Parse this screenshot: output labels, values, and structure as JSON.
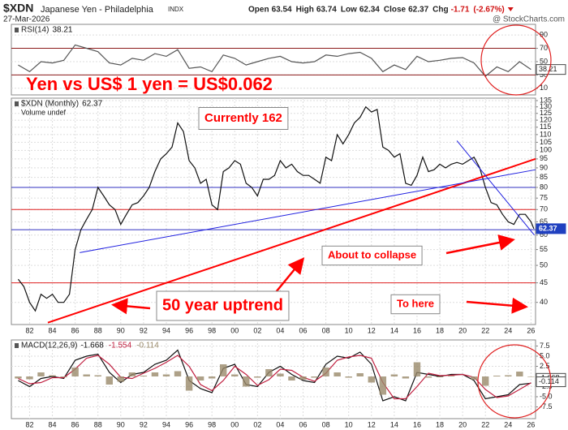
{
  "header": {
    "symbol": "$XDN",
    "name": "Japanese Yen - Philadelphia",
    "exchange": "INDX",
    "date": "27-Mar-2026",
    "quote_labels": {
      "open": "Open",
      "high": "High",
      "low": "Low",
      "close": "Close",
      "chg": "Chg"
    },
    "quote": {
      "open": 63.54,
      "high": 63.74,
      "low": 62.34,
      "close": 62.37,
      "chg": -1.71,
      "chg_pct": {
        "value": -2.67,
        "label": "(-2.67%)"
      }
    },
    "credit": "@ StockCharts.com"
  },
  "annotations": [
    "Yen vs US$  1 yen = US$0.062",
    "Currently 162",
    "50 year uptrend",
    "About to collapse",
    "To here"
  ],
  "chart_data": [
    {
      "type": "line",
      "label": "RSI(14)",
      "xlim": [
        1980.4,
        2026.4
      ],
      "ylim": [
        0,
        106
      ],
      "yticks": [
        10,
        30,
        50,
        70,
        90
      ],
      "grid": true,
      "hlines": [
        {
          "value": 70,
          "color": "#8b1a1a"
        },
        {
          "value": 30,
          "color": "#8b1a1a"
        }
      ],
      "series": [
        {
          "color": "#555555",
          "tag_color": "#ffffff",
          "x": [
            1981,
            1982,
            1983,
            1984,
            1985,
            1986,
            1987,
            1988,
            1989,
            1990,
            1991,
            1992,
            1993,
            1994,
            1995,
            1996,
            1997,
            1998,
            1999,
            2000,
            2001,
            2002,
            2003,
            2004,
            2005,
            2006,
            2007,
            2008,
            2009,
            2010,
            2011,
            2012,
            2013,
            2014,
            2015,
            2016,
            2017,
            2018,
            2019,
            2020,
            2021,
            2022,
            2023,
            2024,
            2025,
            2026
          ],
          "values": [
            45,
            35,
            50,
            48,
            52,
            75,
            70,
            65,
            48,
            45,
            55,
            52,
            62,
            58,
            68,
            40,
            42,
            35,
            60,
            55,
            45,
            50,
            55,
            58,
            50,
            48,
            50,
            60,
            58,
            62,
            64,
            55,
            35,
            45,
            38,
            58,
            50,
            52,
            55,
            56,
            48,
            28,
            42,
            35,
            50,
            38.21
          ]
        }
      ]
    },
    {
      "type": "line",
      "label": "$XDN (Monthly)",
      "note": "Volume undef",
      "log": true,
      "xlim": [
        1980.4,
        2026.4
      ],
      "ylim": [
        35,
        137
      ],
      "yticks": [
        40,
        45,
        50,
        55,
        60,
        65,
        70,
        75,
        80,
        85,
        90,
        95,
        100,
        105,
        110,
        115,
        120,
        125,
        130,
        135
      ],
      "xticks": [
        {
          "value": 1982,
          "label": "82"
        },
        {
          "value": 1984,
          "label": "84"
        },
        {
          "value": 1986,
          "label": "86"
        },
        {
          "value": 1988,
          "label": "88"
        },
        {
          "value": 1990,
          "label": "90"
        },
        {
          "value": 1992,
          "label": "92"
        },
        {
          "value": 1994,
          "label": "94"
        },
        {
          "value": 1996,
          "label": "96"
        },
        {
          "value": 1998,
          "label": "98"
        },
        {
          "value": 2000,
          "label": "00"
        },
        {
          "value": 2002,
          "label": "02"
        },
        {
          "value": 2004,
          "label": "04"
        },
        {
          "value": 2006,
          "label": "06"
        },
        {
          "value": 2008,
          "label": "08"
        },
        {
          "value": 2010,
          "label": "10"
        },
        {
          "value": 2012,
          "label": "12"
        },
        {
          "value": 2014,
          "label": "14"
        },
        {
          "value": 2016,
          "label": "16"
        },
        {
          "value": 2018,
          "label": "18"
        },
        {
          "value": 2020,
          "label": "20"
        },
        {
          "value": 2022,
          "label": "22"
        },
        {
          "value": 2024,
          "label": "24"
        },
        {
          "value": 2026,
          "label": "26"
        }
      ],
      "grid": true,
      "hlines": [
        {
          "value": 80,
          "color": "#3030c0"
        },
        {
          "value": 70,
          "color": "#e02020"
        },
        {
          "value": 62,
          "color": "#3030c0"
        },
        {
          "value": 45,
          "color": "#e02020"
        }
      ],
      "trendlines": [
        {
          "color": "#ff0000",
          "x": [
            1983.6,
            2026.4
          ],
          "values": [
            35.4,
            95
          ]
        },
        {
          "color": "#2020e0",
          "x": [
            1986.4,
            2026.4
          ],
          "values": [
            54,
            89
          ]
        },
        {
          "color": "#2020e0",
          "x": [
            2019.5,
            2026.3
          ],
          "values": [
            106,
            60
          ]
        }
      ],
      "series": [
        {
          "color": "#111111",
          "tag_color": "#2040c0",
          "x": [
            1981,
            1981.5,
            1982,
            1982.5,
            1983,
            1983.5,
            1984,
            1984.5,
            1985,
            1985.5,
            1986,
            1986.5,
            1987,
            1987.5,
            1988,
            1988.5,
            1989,
            1989.5,
            1990,
            1990.5,
            1991,
            1991.5,
            1992,
            1992.5,
            1993,
            1993.5,
            1994,
            1994.5,
            1995,
            1995.5,
            1996,
            1996.5,
            1997,
            1997.5,
            1998,
            1998.5,
            1999,
            1999.5,
            2000,
            2000.5,
            2001,
            2001.5,
            2002,
            2002.5,
            2003,
            2003.5,
            2004,
            2004.5,
            2005,
            2005.5,
            2006,
            2006.5,
            2007,
            2007.5,
            2008,
            2008.5,
            2009,
            2009.5,
            2010,
            2010.5,
            2011,
            2011.5,
            2012,
            2012.5,
            2013,
            2013.5,
            2014,
            2014.5,
            2015,
            2015.5,
            2016,
            2016.5,
            2017,
            2017.5,
            2018,
            2018.5,
            2019,
            2019.5,
            2020,
            2020.5,
            2021,
            2021.5,
            2022,
            2022.5,
            2023,
            2023.5,
            2024,
            2024.5,
            2025,
            2025.5,
            2026,
            2026.25
          ],
          "values": [
            46,
            44,
            40,
            38,
            42,
            41,
            42,
            40,
            40,
            42,
            55,
            62,
            66,
            70,
            80,
            76,
            72,
            70,
            64,
            68,
            72,
            73,
            76,
            80,
            88,
            95,
            98,
            102,
            118,
            112,
            94,
            90,
            82,
            84,
            72,
            70,
            88,
            90,
            94,
            92,
            82,
            80,
            76,
            84,
            84,
            86,
            94,
            90,
            92,
            88,
            86,
            86,
            84,
            82,
            96,
            94,
            110,
            104,
            110,
            118,
            122,
            130,
            126,
            128,
            102,
            100,
            96,
            98,
            82,
            81,
            86,
            96,
            88,
            89,
            92,
            90,
            92,
            93,
            92,
            94,
            96,
            90,
            80,
            73,
            72,
            68,
            65,
            64,
            68,
            68,
            65,
            62.37
          ]
        }
      ]
    },
    {
      "type": "line",
      "label": "MACD(12,26,9)",
      "xlim": [
        1980.4,
        2026.4
      ],
      "ylim": [
        -10.4,
        9
      ],
      "yticks": [
        7.5,
        {
          "value": 5,
          "label": "5.0"
        },
        2.5,
        -2.5,
        {
          "value": -5,
          "label": "-5.0"
        },
        -7.5
      ],
      "xticks": [
        {
          "value": 1982,
          "label": "82"
        },
        {
          "value": 1984,
          "label": "84"
        },
        {
          "value": 1986,
          "label": "86"
        },
        {
          "value": 1988,
          "label": "88"
        },
        {
          "value": 1990,
          "label": "90"
        },
        {
          "value": 1992,
          "label": "92"
        },
        {
          "value": 1994,
          "label": "94"
        },
        {
          "value": 1996,
          "label": "96"
        },
        {
          "value": 1998,
          "label": "98"
        },
        {
          "value": 2000,
          "label": "00"
        },
        {
          "value": 2002,
          "label": "02"
        },
        {
          "value": 2004,
          "label": "04"
        },
        {
          "value": 2006,
          "label": "06"
        },
        {
          "value": 2008,
          "label": "08"
        },
        {
          "value": 2010,
          "label": "10"
        },
        {
          "value": 2012,
          "label": "12"
        },
        {
          "value": 2014,
          "label": "14"
        },
        {
          "value": 2016,
          "label": "16"
        },
        {
          "value": 2018,
          "label": "18"
        },
        {
          "value": 2020,
          "label": "20"
        },
        {
          "value": 2022,
          "label": "22"
        },
        {
          "value": 2024,
          "label": "24"
        },
        {
          "value": 2026,
          "label": "26"
        }
      ],
      "grid": true,
      "series": [
        {
          "color": "#111111",
          "tag_color": "#ffffff",
          "x": [
            1981,
            1982,
            1983,
            1984,
            1985,
            1986,
            1987,
            1988,
            1989,
            1990,
            1991,
            1992,
            1993,
            1994,
            1995,
            1996,
            1997,
            1998,
            1999,
            2000,
            2001,
            2002,
            2003,
            2004,
            2005,
            2006,
            2007,
            2008,
            2009,
            2010,
            2011,
            2012,
            2013,
            2014,
            2015,
            2016,
            2017,
            2018,
            2019,
            2020,
            2021,
            2022,
            2023,
            2024,
            2025,
            2026
          ],
          "values": [
            -1,
            -2.5,
            -0.5,
            0,
            -0.5,
            4,
            5,
            5.5,
            1,
            -1.5,
            0.5,
            1,
            3,
            4,
            6.5,
            -1,
            -3,
            -4,
            2,
            3,
            -2,
            -2.5,
            1,
            2.5,
            0.5,
            -1,
            -1.5,
            3,
            5,
            4.5,
            6,
            3,
            -6,
            -5,
            -6,
            1,
            0.5,
            0,
            0.5,
            0.5,
            -1,
            -5.5,
            -5,
            -4.5,
            -2,
            -1.668
          ]
        },
        {
          "color": "#c02040",
          "x": [
            1981,
            1982,
            1983,
            1984,
            1985,
            1986,
            1987,
            1988,
            1989,
            1990,
            1991,
            1992,
            1993,
            1994,
            1995,
            1996,
            1997,
            1998,
            1999,
            2000,
            2001,
            2002,
            2003,
            2004,
            2005,
            2006,
            2007,
            2008,
            2009,
            2010,
            2011,
            2012,
            2013,
            2014,
            2015,
            2016,
            2017,
            2018,
            2019,
            2020,
            2021,
            2022,
            2023,
            2024,
            2025,
            2026
          ],
          "values": [
            -0.5,
            -1.8,
            -1.5,
            -0.3,
            -0.3,
            1.8,
            4.5,
            5.2,
            3,
            -0.2,
            -0.5,
            0.8,
            2,
            3.5,
            5.2,
            2.5,
            -2,
            -3.5,
            -1,
            2.5,
            0.5,
            -2.2,
            -0.8,
            1.8,
            1.5,
            -0.2,
            -1.2,
            0.8,
            4,
            4.8,
            5.2,
            4.5,
            -1.5,
            -5.5,
            -5.5,
            -2.5,
            0.8,
            0.2,
            0.3,
            0.5,
            -0.2,
            -3.2,
            -5.2,
            -4.8,
            -3.2,
            -1.554
          ]
        },
        {
          "color": "#9a8a6a",
          "kind": "bar",
          "tag_color": "#ffffff",
          "x": [
            1981,
            1982,
            1983,
            1984,
            1985,
            1986,
            1987,
            1988,
            1989,
            1990,
            1991,
            1992,
            1993,
            1994,
            1995,
            1996,
            1997,
            1998,
            1999,
            2000,
            2001,
            2002,
            2003,
            2004,
            2005,
            2006,
            2007,
            2008,
            2009,
            2010,
            2011,
            2012,
            2013,
            2014,
            2015,
            2016,
            2017,
            2018,
            2019,
            2020,
            2021,
            2022,
            2023,
            2024,
            2025,
            2026
          ],
          "values": [
            -0.5,
            -0.7,
            1.0,
            0.3,
            -0.2,
            2.2,
            0.5,
            0.3,
            -2,
            -1.3,
            1.0,
            0.2,
            1.0,
            0.5,
            1.3,
            -3.5,
            -1.0,
            -0.5,
            3.0,
            0.5,
            -2.5,
            -0.3,
            1.8,
            0.7,
            -1.0,
            -0.8,
            -0.3,
            2.2,
            1.0,
            -0.3,
            0.8,
            -1.5,
            -4.5,
            0.5,
            -0.5,
            3.5,
            -0.3,
            -0.2,
            0.2,
            0,
            -0.8,
            -2.3,
            0.2,
            0.3,
            1.2,
            -0.114
          ]
        }
      ]
    }
  ]
}
